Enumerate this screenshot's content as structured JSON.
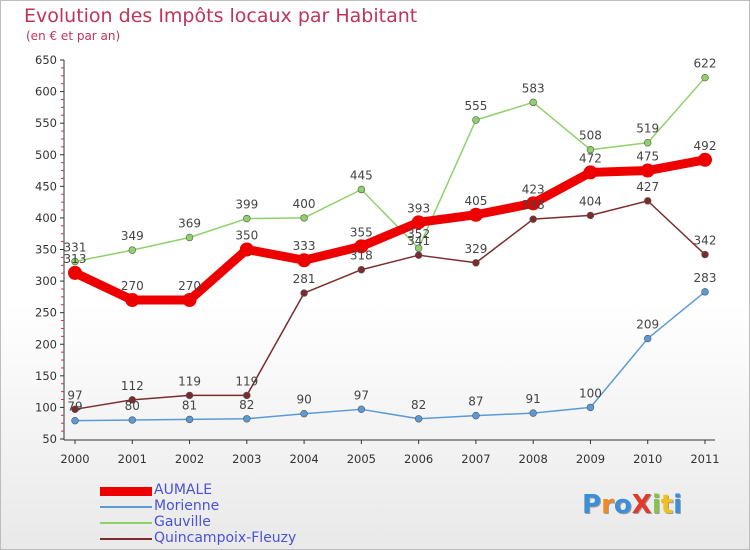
{
  "title": "Evolution des Impôts locaux par Habitant",
  "subtitle": "(en € et par an)",
  "logo": {
    "text": "ProXiti",
    "colors": [
      "#3a8fd8",
      "#f08a24",
      "#3a8fd8",
      "#e23a2a",
      "#8bc34a",
      "#f0c21e",
      "#3a8fd8"
    ]
  },
  "chart_data": {
    "type": "line",
    "x": [
      "2000",
      "2001",
      "2002",
      "2003",
      "2004",
      "2005",
      "2006",
      "2007",
      "2008",
      "2009",
      "2010",
      "2011"
    ],
    "ylim": [
      50,
      650
    ],
    "yticks": [
      50,
      100,
      150,
      200,
      250,
      300,
      350,
      400,
      450,
      500,
      550,
      600,
      650
    ],
    "grid": false,
    "legend": "bottom-left",
    "series": [
      {
        "name": "AUMALE",
        "color": "#ee0000",
        "values": [
          313,
          270,
          270,
          350,
          333,
          355,
          393,
          405,
          423,
          472,
          475,
          492
        ]
      },
      {
        "name": "Morienne",
        "color": "#5b9bd5",
        "values": [
          79,
          80,
          81,
          82,
          90,
          97,
          82,
          87,
          91,
          100,
          209,
          283
        ]
      },
      {
        "name": "Gauville",
        "color": "#8fd16a",
        "values": [
          331,
          349,
          369,
          399,
          400,
          445,
          352,
          555,
          583,
          508,
          519,
          622
        ]
      },
      {
        "name": "Quincampoix-Fleuzy",
        "color": "#7b2c2c",
        "values": [
          97,
          112,
          119,
          119,
          281,
          318,
          341,
          329,
          398,
          404,
          427,
          342
        ]
      }
    ]
  }
}
